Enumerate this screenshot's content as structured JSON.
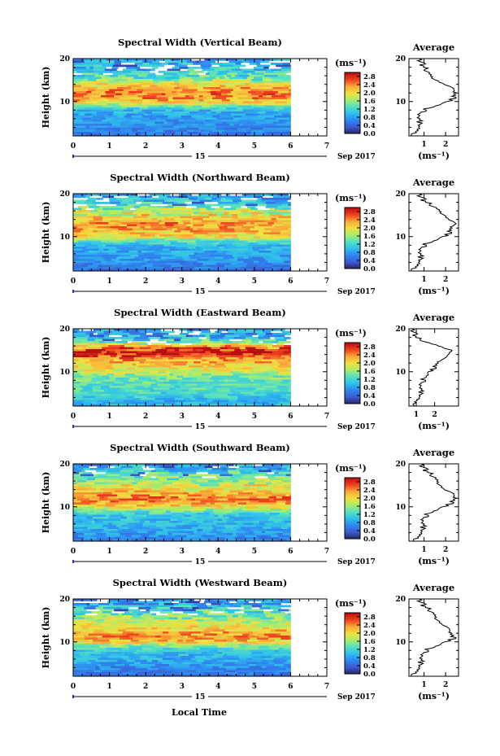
{
  "figure": {
    "x_axis_label": "Local Time",
    "date_day": "15",
    "date_month_year": "Sep 2017",
    "average_title": "Average",
    "unit_label": "(ms⁻¹)",
    "y_axis_label": "Height (km)"
  },
  "colorbar": {
    "ticks": [
      "0.0",
      "0.4",
      "0.8",
      "1.2",
      "1.6",
      "2.0",
      "2.4",
      "2.8"
    ],
    "range": [
      0,
      3.0
    ],
    "colors": [
      "#262660",
      "#3c5ad0",
      "#2f86f0",
      "#2fc0ec",
      "#55e0c0",
      "#a8ec70",
      "#f0e040",
      "#f8a838",
      "#f04020",
      "#b81010"
    ]
  },
  "chart_data": [
    {
      "type": "heatmap",
      "title": "Spectral Width (Vertical Beam)",
      "xlabel": "Local Time",
      "ylabel": "Height (km)",
      "xlim": [
        0,
        7
      ],
      "x_data_end": 6,
      "ylim": [
        2,
        20
      ],
      "xticks": [
        "0",
        "1",
        "2",
        "3",
        "4",
        "5",
        "6",
        "7"
      ],
      "yticks": [
        "10",
        "20"
      ],
      "profile_heights_km": [
        2,
        3,
        4,
        5,
        6,
        7,
        8,
        9,
        10,
        11,
        12,
        13,
        14,
        15,
        16,
        17,
        18,
        19,
        20
      ],
      "profile_ms": [
        0.5,
        0.6,
        0.7,
        0.75,
        0.8,
        0.85,
        1.0,
        1.5,
        2.2,
        2.4,
        2.5,
        2.3,
        2.0,
        1.6,
        1.3,
        1.1,
        1.0,
        0.9,
        0.8
      ],
      "profile": {
        "title": "Average",
        "xlabel": "(ms⁻¹)",
        "xlim": [
          0.3,
          2.6
        ],
        "xticks": [
          "1",
          "2"
        ],
        "yticks": [
          "10",
          "20"
        ]
      }
    },
    {
      "type": "heatmap",
      "title": "Spectral Width (Northward Beam)",
      "xlabel": "Local Time",
      "ylabel": "Height (km)",
      "xlim": [
        0,
        7
      ],
      "x_data_end": 6,
      "ylim": [
        2,
        20
      ],
      "xticks": [
        "0",
        "1",
        "2",
        "3",
        "4",
        "5",
        "6",
        "7"
      ],
      "yticks": [
        "10",
        "20"
      ],
      "profile_heights_km": [
        2,
        3,
        4,
        5,
        6,
        7,
        8,
        9,
        10,
        11,
        12,
        13,
        14,
        15,
        16,
        17,
        18,
        19,
        20
      ],
      "profile_ms": [
        0.5,
        0.6,
        0.7,
        0.8,
        0.85,
        0.9,
        1.0,
        1.4,
        2.0,
        2.2,
        2.3,
        2.4,
        2.2,
        2.0,
        1.7,
        1.4,
        1.1,
        0.9,
        0.8
      ],
      "profile": {
        "title": "Average",
        "xlabel": "(ms⁻¹)",
        "xlim": [
          0.3,
          2.6
        ],
        "xticks": [
          "1",
          "2"
        ],
        "yticks": [
          "10",
          "20"
        ]
      }
    },
    {
      "type": "heatmap",
      "title": "Spectral Width (Eastward Beam)",
      "xlabel": "Local Time",
      "ylabel": "Height (km)",
      "xlim": [
        0,
        7
      ],
      "x_data_end": 6,
      "ylim": [
        2,
        20
      ],
      "xticks": [
        "0",
        "1",
        "2",
        "3",
        "4",
        "5",
        "6",
        "7"
      ],
      "yticks": [
        "10",
        "20"
      ],
      "profile_heights_km": [
        2,
        3,
        4,
        5,
        6,
        7,
        8,
        9,
        10,
        11,
        12,
        13,
        14,
        15,
        16,
        17,
        18,
        19,
        20
      ],
      "profile_ms": [
        1.0,
        0.9,
        1.1,
        1.2,
        1.3,
        1.3,
        1.4,
        1.5,
        1.8,
        2.0,
        2.2,
        2.4,
        2.8,
        3.0,
        2.2,
        1.4,
        1.0,
        0.9,
        0.8
      ],
      "profile": {
        "title": "Average",
        "xlabel": "(ms⁻¹)",
        "xlim": [
          0.6,
          3.3
        ],
        "xticks": [
          "1",
          "2"
        ],
        "yticks": [
          "10",
          "20"
        ]
      }
    },
    {
      "type": "heatmap",
      "title": "Spectral Width (Southward Beam)",
      "xlabel": "Local Time",
      "ylabel": "Height (km)",
      "xlim": [
        0,
        7
      ],
      "x_data_end": 6,
      "ylim": [
        2,
        20
      ],
      "xticks": [
        "0",
        "1",
        "2",
        "3",
        "4",
        "5",
        "6",
        "7"
      ],
      "yticks": [
        "10",
        "20"
      ],
      "profile_heights_km": [
        2,
        3,
        4,
        5,
        6,
        7,
        8,
        9,
        10,
        11,
        12,
        13,
        14,
        15,
        16,
        17,
        18,
        19,
        20
      ],
      "profile_ms": [
        0.6,
        0.7,
        0.8,
        0.9,
        1.0,
        1.0,
        1.1,
        1.4,
        2.0,
        2.3,
        2.5,
        2.3,
        2.0,
        1.8,
        1.6,
        1.4,
        1.2,
        1.0,
        0.9
      ],
      "profile": {
        "title": "Average",
        "xlabel": "(ms⁻¹)",
        "xlim": [
          0.3,
          2.6
        ],
        "xticks": [
          "1",
          "2"
        ],
        "yticks": [
          "10",
          "20"
        ]
      }
    },
    {
      "type": "heatmap",
      "title": "Spectral Width (Westward Beam)",
      "xlabel": "Local Time",
      "ylabel": "Height (km)",
      "xlim": [
        0,
        7
      ],
      "x_data_end": 6,
      "ylim": [
        2,
        20
      ],
      "xticks": [
        "0",
        "1",
        "2",
        "3",
        "4",
        "5",
        "6",
        "7"
      ],
      "yticks": [
        "10",
        "20"
      ],
      "profile_heights_km": [
        2,
        3,
        4,
        5,
        6,
        7,
        8,
        9,
        10,
        11,
        12,
        13,
        14,
        15,
        16,
        17,
        18,
        19,
        20
      ],
      "profile_ms": [
        0.5,
        0.6,
        0.7,
        0.8,
        0.9,
        1.0,
        1.1,
        1.5,
        2.1,
        2.4,
        2.3,
        2.1,
        1.9,
        1.7,
        1.5,
        1.3,
        1.1,
        0.9,
        0.8
      ],
      "profile": {
        "title": "Average",
        "xlabel": "(ms⁻¹)",
        "xlim": [
          0.3,
          2.6
        ],
        "xticks": [
          "1",
          "2"
        ],
        "yticks": [
          "10",
          "20"
        ]
      }
    }
  ]
}
